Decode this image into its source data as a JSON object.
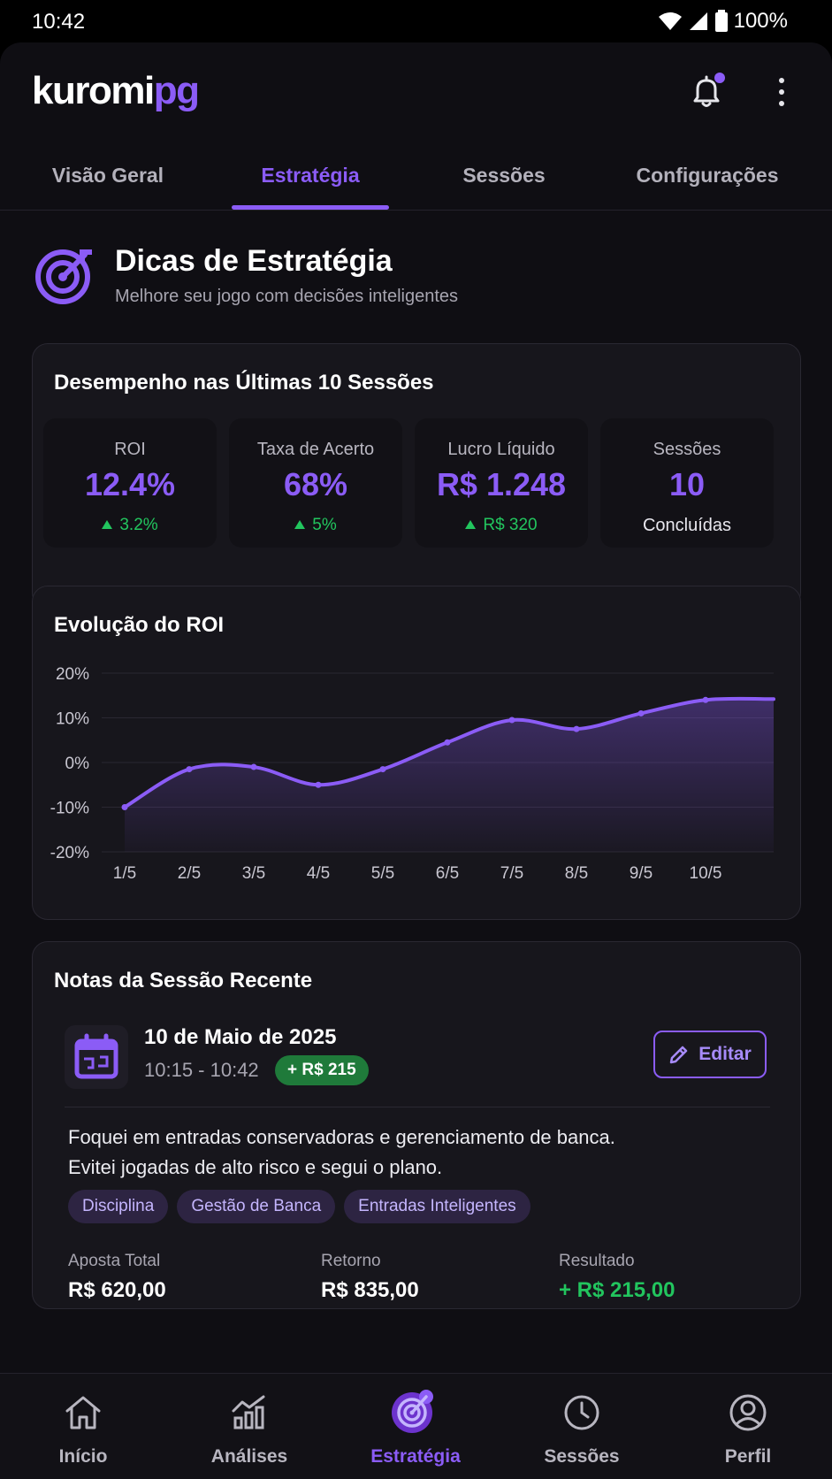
{
  "status_bar": {
    "time": "10:42",
    "battery": "100%"
  },
  "app": {
    "logo_part1": "kuromi",
    "logo_part2": "pg"
  },
  "tabs": [
    {
      "label": "Visão Geral"
    },
    {
      "label": "Estratégia"
    },
    {
      "label": "Sessões"
    },
    {
      "label": "Configurações"
    }
  ],
  "header": {
    "title": "Dicas de Estratégia",
    "subtitle": "Melhore seu jogo com decisões inteligentes"
  },
  "performance": {
    "title": "Desempenho nas Últimas 10 Sessões",
    "stats": [
      {
        "label": "ROI",
        "value": "12.4%",
        "delta": "3.2%"
      },
      {
        "label": "Taxa de Acerto",
        "value": "68%",
        "delta": "5%"
      },
      {
        "label": "Lucro Líquido",
        "value": "R$ 1.248",
        "delta": "R$ 320"
      },
      {
        "label": "Sessões",
        "value": "10",
        "sub": "Concluídas"
      }
    ]
  },
  "roi_chart": {
    "title": "Evolução do ROI"
  },
  "chart_data": {
    "type": "area",
    "title": "Evolução do ROI",
    "categories": [
      "1/5",
      "2/5",
      "3/5",
      "4/5",
      "5/5",
      "6/5",
      "7/5",
      "8/5",
      "9/5",
      "10/5"
    ],
    "values": [
      -10,
      -1.5,
      -1,
      -5,
      -1.5,
      4.5,
      9.5,
      7.5,
      11,
      14
    ],
    "yticks": [
      "20%",
      "10%",
      "0%",
      "-10%",
      "-20%"
    ],
    "ylim": [
      -20,
      20
    ],
    "grid": true,
    "color": "#8b5cf6"
  },
  "notes": {
    "title": "Notas da Sessão Recente",
    "date": "10 de Maio de 2025",
    "time": "10:15 - 10:42",
    "badge": "+ R$ 215",
    "edit_label": "Editar",
    "text_line1": "Foquei em entradas conservadoras e gerenciamento de banca.",
    "text_line2": "Evitei jogadas de alto risco e segui o plano.",
    "tags": [
      "Disciplina",
      "Gestão de Banca",
      "Entradas Inteligentes"
    ],
    "summary": {
      "aposta_label": "Aposta Total",
      "aposta_value": "R$ 620,00",
      "retorno_label": "Retorno",
      "retorno_value": "R$ 835,00",
      "resultado_label": "Resultado",
      "resultado_value": "+ R$ 215,00"
    }
  },
  "bottom_nav": [
    {
      "label": "Início",
      "icon": "home-icon"
    },
    {
      "label": "Análises",
      "icon": "analytics-icon"
    },
    {
      "label": "Estratégia",
      "icon": "target-icon"
    },
    {
      "label": "Sessões",
      "icon": "clock-icon"
    },
    {
      "label": "Perfil",
      "icon": "profile-icon"
    }
  ]
}
